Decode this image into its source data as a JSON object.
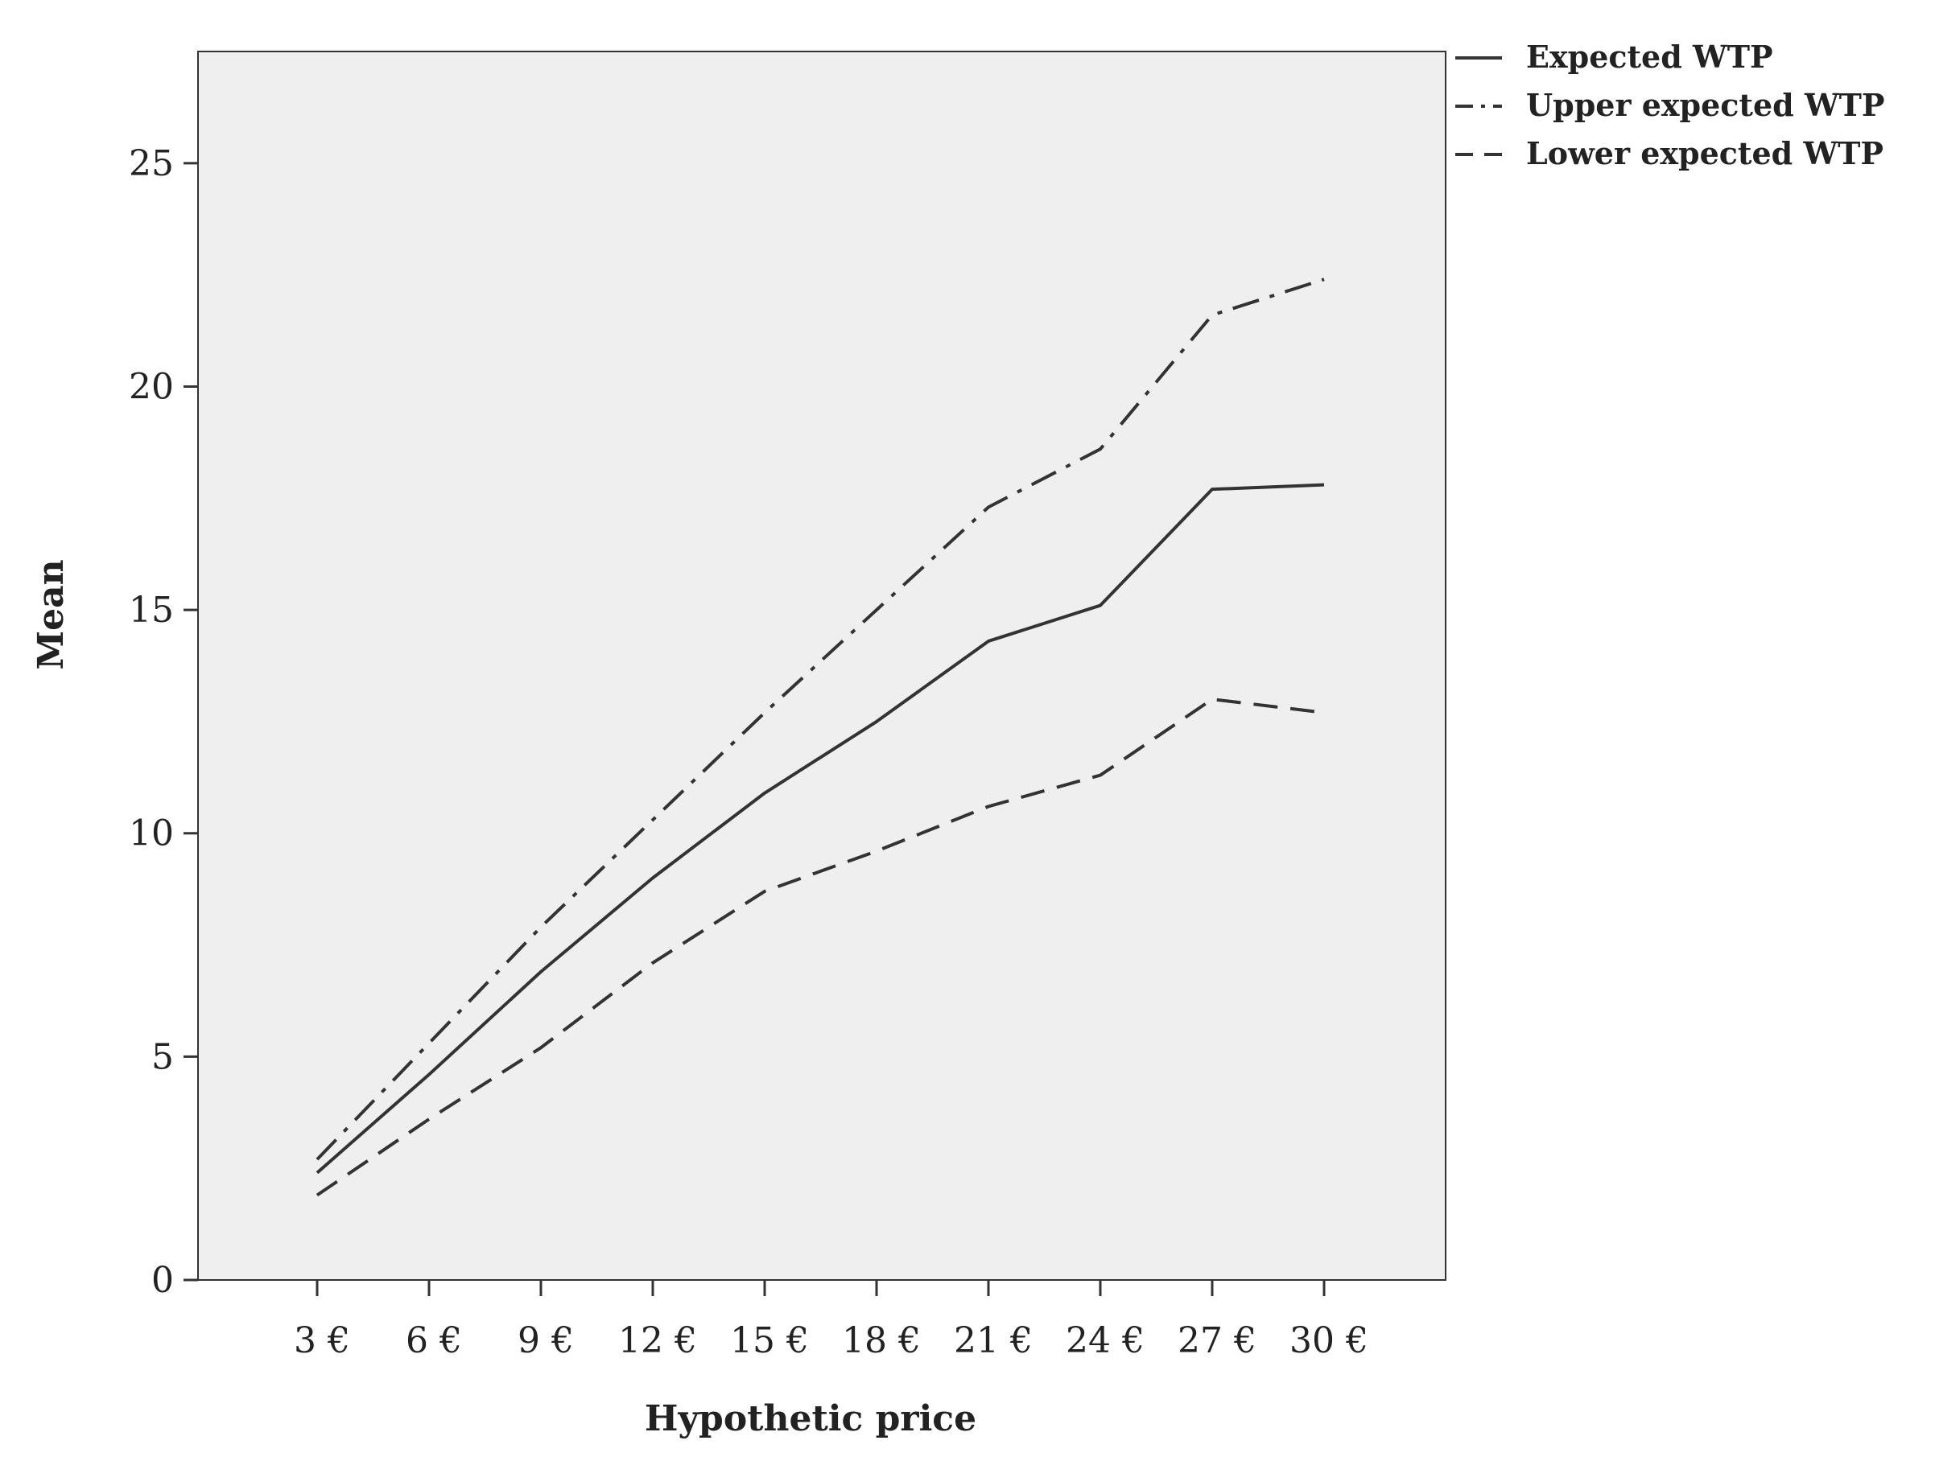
{
  "chart_data": {
    "type": "line",
    "title": "",
    "xlabel": "Hypothetic price",
    "ylabel": "Mean",
    "categories": [
      "3 €",
      "6 €",
      "9 €",
      "12 €",
      "15 €",
      "18 €",
      "21 €",
      "24 €",
      "27 €",
      "30 €"
    ],
    "ylim": [
      0,
      27.5
    ],
    "yticks": [
      0,
      5,
      10,
      15,
      20,
      25
    ],
    "grid": false,
    "legend_position": "top-right",
    "plot_background": "#efefef",
    "line_color": "#333333",
    "series": [
      {
        "name": "Expected WTP",
        "style": "solid",
        "values": [
          2.4,
          4.6,
          6.9,
          9.0,
          10.9,
          12.5,
          14.3,
          15.1,
          17.7,
          17.8
        ]
      },
      {
        "name": "Upper expected WTP",
        "style": "dash-dot",
        "values": [
          2.7,
          5.3,
          7.9,
          10.3,
          12.7,
          15.0,
          17.3,
          18.6,
          21.6,
          22.4
        ]
      },
      {
        "name": "Lower expected WTP",
        "style": "dashed",
        "values": [
          1.9,
          3.6,
          5.2,
          7.1,
          8.7,
          9.6,
          10.6,
          11.3,
          13.0,
          12.7
        ]
      }
    ]
  }
}
